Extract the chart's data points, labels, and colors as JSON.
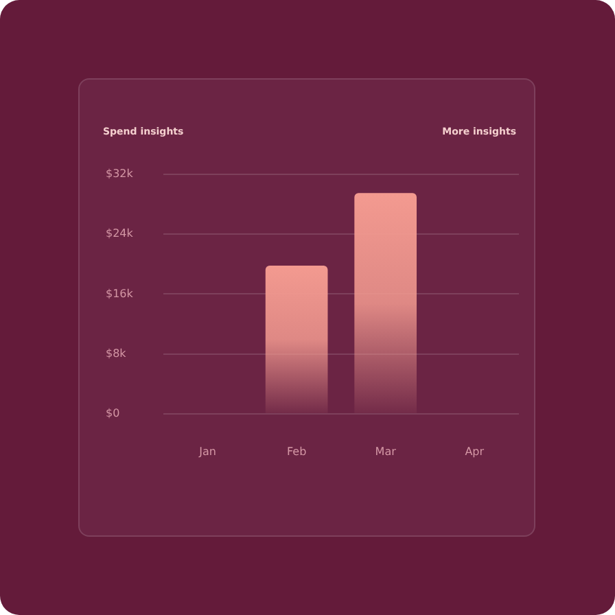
{
  "chart_data": {
    "type": "bar",
    "title": "Spend insights",
    "annotations": [
      "More insights"
    ],
    "categories": [
      "Jan",
      "Feb",
      "Mar",
      "Apr"
    ],
    "values": [
      null,
      19800,
      29500,
      null
    ],
    "color": "#f39a90",
    "ylim": [
      0,
      32000
    ],
    "yticks": [
      {
        "value": 0,
        "label": "$0"
      },
      {
        "value": 8000,
        "label": "$8k"
      },
      {
        "value": 16000,
        "label": "$16k"
      },
      {
        "value": 24000,
        "label": "$24k"
      },
      {
        "value": 32000,
        "label": "$32k"
      }
    ],
    "grid": "y"
  }
}
